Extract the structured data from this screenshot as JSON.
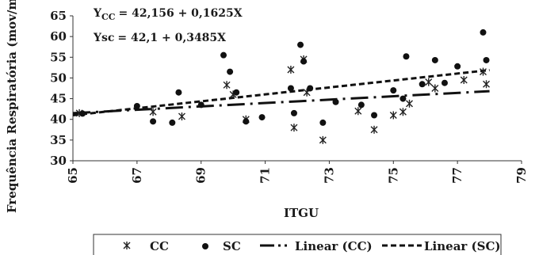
{
  "chart_data": {
    "type": "scatter",
    "xlabel": "ITGU",
    "ylabel": "Frequência Respiratória (mov/min)",
    "xlim": [
      65,
      79
    ],
    "ylim": [
      30,
      65
    ],
    "x_ticks": [
      65,
      67,
      69,
      71,
      73,
      75,
      77,
      79
    ],
    "y_ticks": [
      30,
      35,
      40,
      45,
      50,
      55,
      60,
      65
    ],
    "grid": false,
    "legend_position": "bottom",
    "equations": [
      {
        "lhs": "Y",
        "sub": "CC",
        "rhs": "= 42,156 + 0,1625X"
      },
      {
        "lhs": "Ysc",
        "sub": "",
        "rhs": "= 42,1 + 0,3485X"
      }
    ],
    "series": [
      {
        "name": "CC",
        "marker": "asterisk",
        "points": [
          [
            65.2,
            41.5
          ],
          [
            67.5,
            41.8
          ],
          [
            68.4,
            40.7
          ],
          [
            69.8,
            48.3
          ],
          [
            70.0,
            46.0
          ],
          [
            70.4,
            40.0
          ],
          [
            71.8,
            52.0
          ],
          [
            71.9,
            38.0
          ],
          [
            72.2,
            54.5
          ],
          [
            72.3,
            46.5
          ],
          [
            72.8,
            35.0
          ],
          [
            73.9,
            42.0
          ],
          [
            74.4,
            37.5
          ],
          [
            75.0,
            41.0
          ],
          [
            75.3,
            41.8
          ],
          [
            75.5,
            43.8
          ],
          [
            76.1,
            49.0
          ],
          [
            76.3,
            47.5
          ],
          [
            77.2,
            49.5
          ],
          [
            77.8,
            51.5
          ],
          [
            77.9,
            48.5
          ]
        ]
      },
      {
        "name": "SC",
        "marker": "circle",
        "points": [
          [
            65.3,
            41.4
          ],
          [
            67.0,
            43.2
          ],
          [
            67.5,
            39.5
          ],
          [
            68.1,
            39.2
          ],
          [
            68.3,
            46.5
          ],
          [
            69.0,
            43.5
          ],
          [
            69.7,
            55.5
          ],
          [
            69.9,
            51.5
          ],
          [
            70.1,
            46.5
          ],
          [
            70.4,
            39.5
          ],
          [
            70.9,
            40.5
          ],
          [
            71.8,
            47.5
          ],
          [
            71.9,
            41.5
          ],
          [
            72.1,
            58.0
          ],
          [
            72.2,
            54.0
          ],
          [
            72.4,
            47.5
          ],
          [
            72.8,
            39.2
          ],
          [
            73.2,
            44.2
          ],
          [
            74.0,
            43.5
          ],
          [
            74.4,
            41.0
          ],
          [
            75.0,
            47.0
          ],
          [
            75.3,
            45.0
          ],
          [
            75.4,
            55.2
          ],
          [
            75.9,
            48.5
          ],
          [
            76.3,
            54.3
          ],
          [
            76.6,
            48.8
          ],
          [
            77.0,
            52.8
          ],
          [
            77.8,
            61.0
          ],
          [
            77.9,
            54.3
          ]
        ]
      },
      {
        "name": "Linear (CC)",
        "style": "long-dash-dot",
        "line": [
          [
            65,
            41.5
          ],
          [
            78,
            46.8
          ]
        ]
      },
      {
        "name": "Linear (SC)",
        "style": "dashed",
        "line": [
          [
            65,
            41.0
          ],
          [
            78,
            51.9
          ]
        ]
      }
    ]
  }
}
